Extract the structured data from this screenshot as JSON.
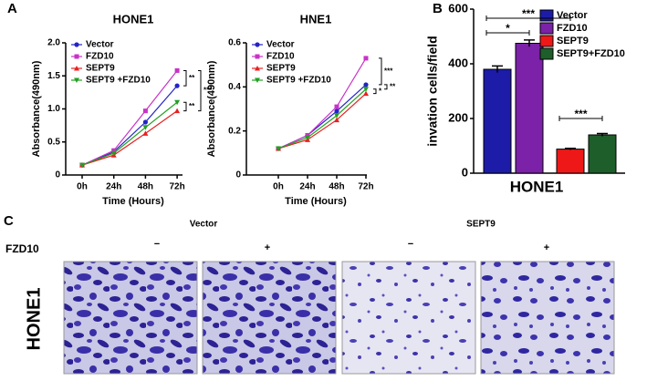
{
  "panel_labels": [
    "A",
    "B",
    "C"
  ],
  "chart_data": [
    {
      "type": "line",
      "title": "HONE1",
      "x_label": "Time (Hours)",
      "y_label": "Absorbance(490nm)",
      "categories": [
        "0h",
        "24h",
        "48h",
        "72h"
      ],
      "ylim": [
        0,
        2
      ],
      "yticks": [
        0,
        0.5,
        {
          "value": 1,
          "label": "1.0"
        },
        1.5,
        {
          "value": 2,
          "label": "2.0"
        }
      ],
      "series": [
        {
          "name": "Vector",
          "color": "#2323c8",
          "values": [
            0.15,
            0.35,
            0.8,
            1.35
          ]
        },
        {
          "name": "FZD10",
          "color": "#c832c8",
          "values": [
            0.15,
            0.37,
            0.97,
            1.58
          ]
        },
        {
          "name": "SEPT9",
          "color": "#e82020",
          "values": [
            0.15,
            0.3,
            0.63,
            0.97
          ]
        },
        {
          "name": "SEPT9 +FZD10",
          "color": "#22a022",
          "values": [
            0.15,
            0.33,
            0.72,
            1.1
          ]
        }
      ],
      "annotations": [
        "**",
        "***",
        "**"
      ]
    },
    {
      "type": "line",
      "title": "HNE1",
      "x_label": "Time (Hours)",
      "y_label": "Absorbance(490nm)",
      "categories": [
        "0h",
        "24h",
        "48h",
        "72h"
      ],
      "ylim": [
        0,
        0.6
      ],
      "yticks": [
        0,
        0.2,
        0.4,
        0.6
      ],
      "series": [
        {
          "name": "Vector",
          "color": "#2323c8",
          "values": [
            0.12,
            0.18,
            0.29,
            0.41
          ]
        },
        {
          "name": "FZD10",
          "color": "#c832c8",
          "values": [
            0.12,
            0.18,
            0.31,
            0.53
          ]
        },
        {
          "name": "SEPT9",
          "color": "#e82020",
          "values": [
            0.12,
            0.16,
            0.25,
            0.37
          ]
        },
        {
          "name": "SEPT9 +FZD10",
          "color": "#22a022",
          "values": [
            0.12,
            0.17,
            0.27,
            0.39
          ]
        }
      ],
      "annotations": [
        "***",
        "**",
        "*"
      ]
    },
    {
      "type": "bar",
      "x_label": "HONE1",
      "y_label": "invation cells/field",
      "categories": [
        "Vector",
        "FZD10",
        "SEPT9",
        "SEPT9+FZD10"
      ],
      "values": [
        380,
        475,
        88,
        140
      ],
      "errors": [
        12,
        12,
        3,
        5
      ],
      "colors": [
        "#1c1ca8",
        "#7b22a8",
        "#ee1818",
        "#1e5e2a"
      ],
      "ylim": [
        0,
        600
      ],
      "yticks": [
        0,
        200,
        400,
        600
      ],
      "annotations": [
        "***",
        "*",
        "***"
      ]
    }
  ],
  "panel_c": {
    "columns": [
      "Vector",
      "SEPT9"
    ],
    "row_label": "FZD10",
    "signs": [
      "−",
      "+",
      "−",
      "+"
    ],
    "cell_line": "HONE1"
  }
}
